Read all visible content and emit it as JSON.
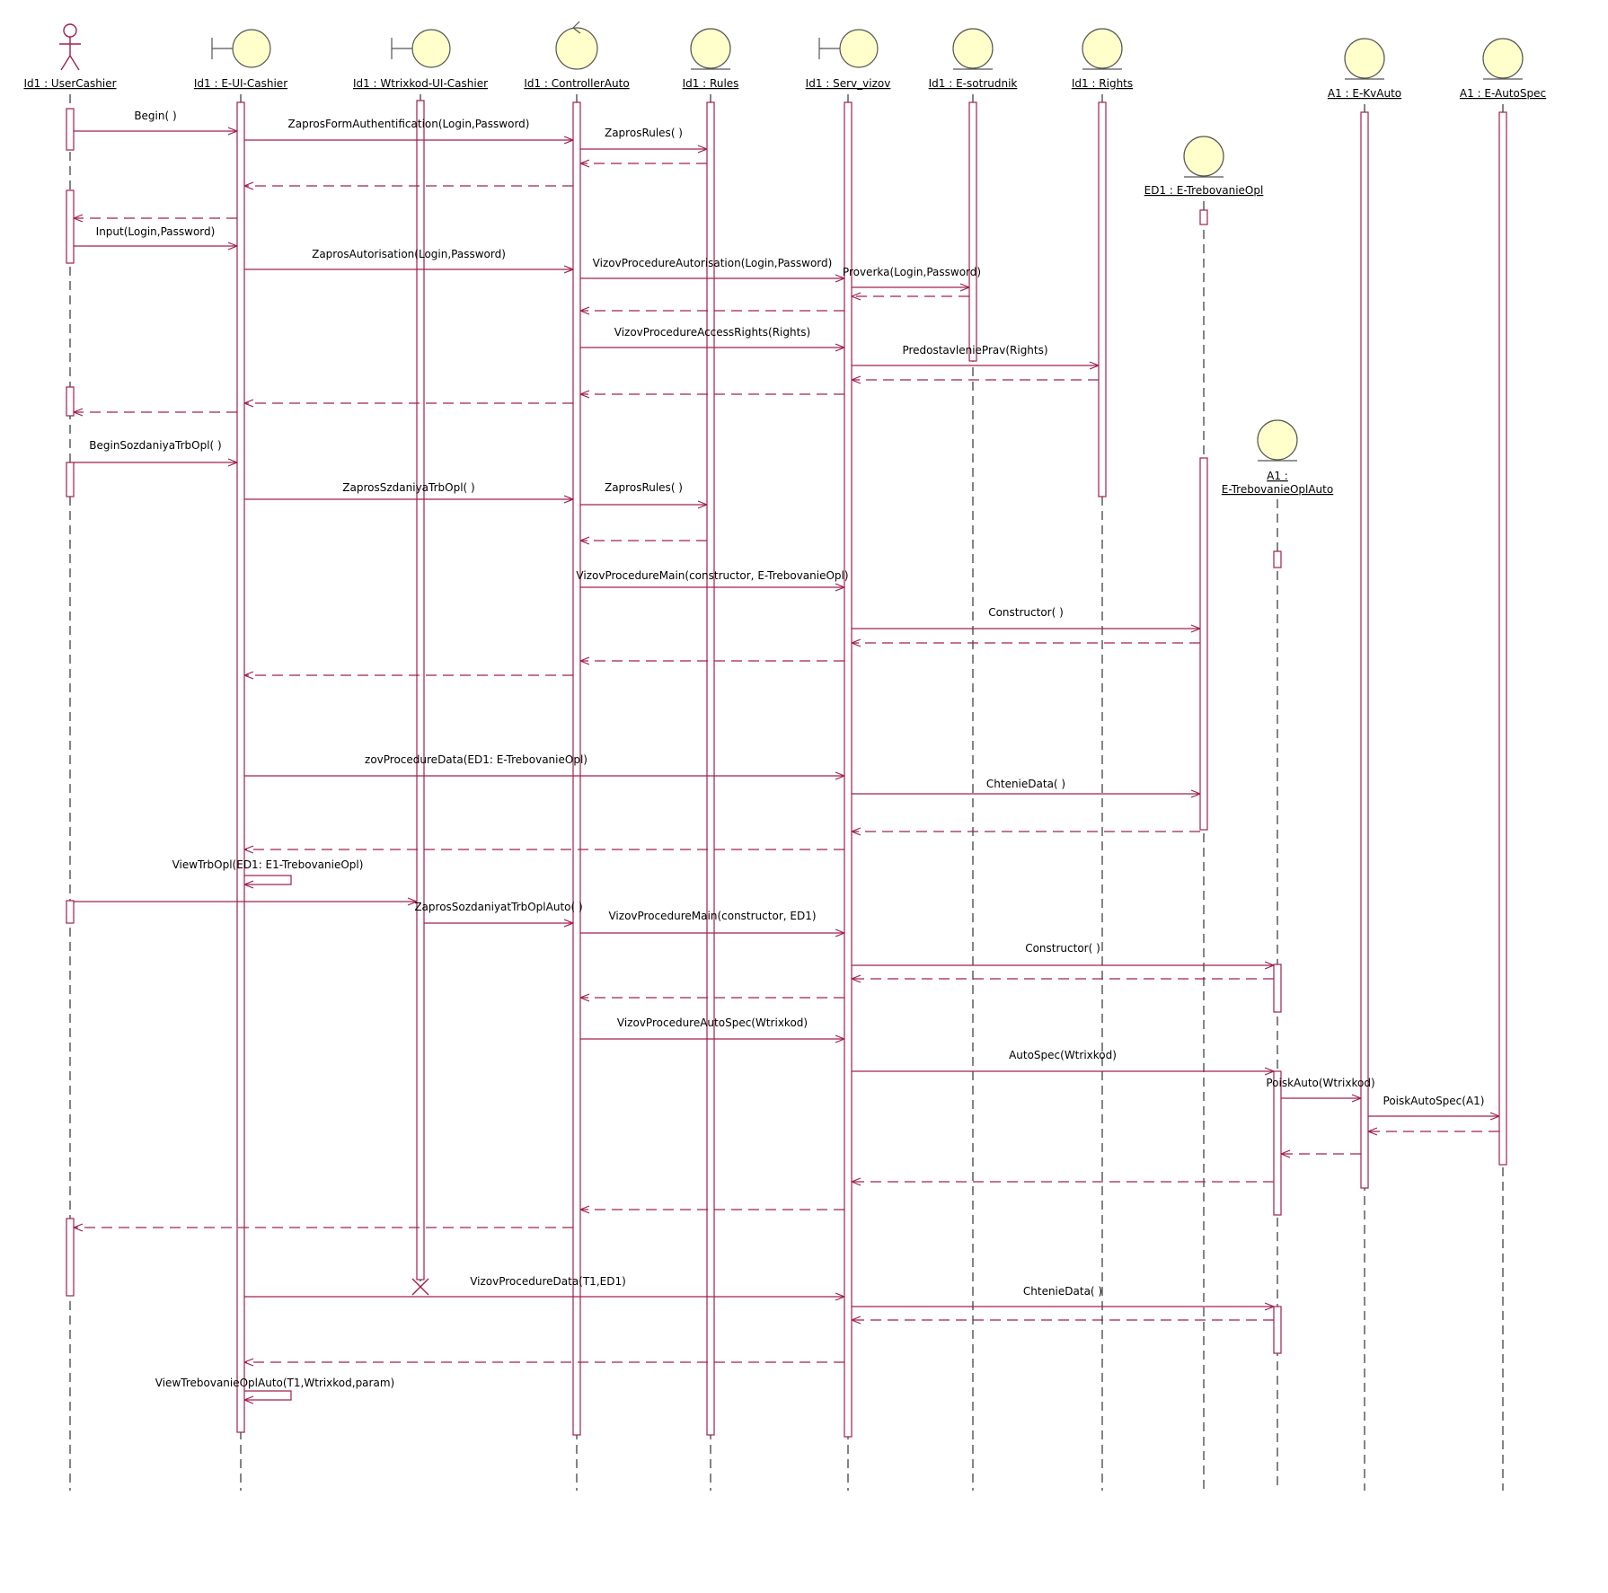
{
  "colors": {
    "line": "#a0204a",
    "icon_fill": "#ffffcc",
    "icon_stroke": "#555555",
    "text": "#000000"
  },
  "lifelines": [
    {
      "id": "user",
      "kind": "actor",
      "label": [
        "Id1 : UserCashier"
      ]
    },
    {
      "id": "ui",
      "kind": "boundary",
      "label": [
        "Id1 : E-UI-Cashier"
      ]
    },
    {
      "id": "wtr",
      "kind": "boundary",
      "label": [
        "Id1 : Wtrixkod-UI-Cashier"
      ]
    },
    {
      "id": "ctrl",
      "kind": "control",
      "label": [
        "Id1 : ControllerAuto"
      ]
    },
    {
      "id": "rules",
      "kind": "entity",
      "label": [
        "Id1 : Rules"
      ]
    },
    {
      "id": "serv",
      "kind": "boundary",
      "label": [
        "Id1 : Serv_vizov"
      ]
    },
    {
      "id": "sotr",
      "kind": "entity",
      "label": [
        "Id1 : E-sotrudnik"
      ]
    },
    {
      "id": "rights",
      "kind": "entity",
      "label": [
        "Id1 : Rights"
      ]
    },
    {
      "id": "ed1",
      "kind": "entity",
      "label": [
        "ED1 : E-TrebovanieOpl"
      ]
    },
    {
      "id": "a1t",
      "kind": "entity",
      "label": [
        "A1 :",
        "E-TrebovanieOplAuto"
      ]
    },
    {
      "id": "kv",
      "kind": "entity",
      "label": [
        "A1 : E-KvAuto"
      ]
    },
    {
      "id": "spec",
      "kind": "entity",
      "label": [
        "A1 : E-AutoSpec"
      ]
    }
  ],
  "messages": [
    {
      "from": "user",
      "to": "ui",
      "label": "Begin( )"
    },
    {
      "from": "ui",
      "to": "ctrl",
      "label": "ZaprosFormAuthentification(Login,Password)"
    },
    {
      "from": "ctrl",
      "to": "rules",
      "label": "ZaprosRules( )"
    },
    {
      "from": "rules",
      "to": "ctrl",
      "label": "",
      "return": true
    },
    {
      "from": "ctrl",
      "to": "ui",
      "label": "",
      "return": true
    },
    {
      "from": "ui",
      "to": "user",
      "label": "",
      "return": true
    },
    {
      "from": "user",
      "to": "ui",
      "label": "Input(Login,Password)"
    },
    {
      "from": "ui",
      "to": "ctrl",
      "label": "ZaprosAutorisation(Login,Password)"
    },
    {
      "from": "ctrl",
      "to": "serv",
      "label": "VizovProcedureAutorisation(Login,Password)"
    },
    {
      "from": "serv",
      "to": "sotr",
      "label": "Proverka(Login,Password)"
    },
    {
      "from": "sotr",
      "to": "serv",
      "label": "",
      "return": true
    },
    {
      "from": "serv",
      "to": "ctrl",
      "label": "",
      "return": true
    },
    {
      "from": "ctrl",
      "to": "serv",
      "label": "VizovProcedureAccessRights(Rights)"
    },
    {
      "from": "serv",
      "to": "rights",
      "label": "PredostavleniePrav(Rights)"
    },
    {
      "from": "rights",
      "to": "serv",
      "label": "",
      "return": true
    },
    {
      "from": "serv",
      "to": "ctrl",
      "label": "",
      "return": true
    },
    {
      "from": "ctrl",
      "to": "ui",
      "label": "",
      "return": true
    },
    {
      "from": "ui",
      "to": "user",
      "label": "",
      "return": true
    },
    {
      "from": "user",
      "to": "ui",
      "label": "BeginSozdaniyaTrbOpl( )"
    },
    {
      "from": "ui",
      "to": "ctrl",
      "label": "ZaprosSzdaniyaTrbOpl( )"
    },
    {
      "from": "ctrl",
      "to": "rules",
      "label": "ZaprosRules( )"
    },
    {
      "from": "rules",
      "to": "ctrl",
      "label": "",
      "return": true
    },
    {
      "from": "ctrl",
      "to": "serv",
      "label": "VizovProcedureMain(constructor, E-TrebovanieOpl)"
    },
    {
      "from": "serv",
      "to": "ed1",
      "label": "Constructor( )"
    },
    {
      "from": "ed1",
      "to": "serv",
      "label": "",
      "return": true
    },
    {
      "from": "serv",
      "to": "ctrl",
      "label": "",
      "return": true
    },
    {
      "from": "ctrl",
      "to": "ui",
      "label": "",
      "return": true
    },
    {
      "from": "ui",
      "to": "serv",
      "label": "zovProcedureData(ED1: E-TrebovanieOpl)"
    },
    {
      "from": "serv",
      "to": "ed1",
      "label": "ChtenieData( )"
    },
    {
      "from": "ed1",
      "to": "serv",
      "label": "",
      "return": true
    },
    {
      "from": "serv",
      "to": "ui",
      "label": "",
      "return": true
    },
    {
      "from": "ui",
      "to": "ui",
      "label": "ViewTrbOpl(ED1: E1-TrebovanieOpl)",
      "self": true
    },
    {
      "from": "user",
      "to": "wtr",
      "label": ""
    },
    {
      "from": "wtr",
      "to": "ctrl",
      "label": "ZaprosSozdaniyatTrbOplAuto( )"
    },
    {
      "from": "ctrl",
      "to": "serv",
      "label": "VizovProcedureMain(constructor, ED1)"
    },
    {
      "from": "serv",
      "to": "a1t",
      "label": "Constructor( )"
    },
    {
      "from": "a1t",
      "to": "serv",
      "label": "",
      "return": true
    },
    {
      "from": "serv",
      "to": "ctrl",
      "label": "",
      "return": true
    },
    {
      "from": "ctrl",
      "to": "serv",
      "label": "VizovProcedureAutoSpec(Wtrixkod)"
    },
    {
      "from": "serv",
      "to": "a1t",
      "label": "AutoSpec(Wtrixkod)"
    },
    {
      "from": "a1t",
      "to": "kv",
      "label": "PoiskAuto(Wtrixkod)"
    },
    {
      "from": "kv",
      "to": "spec",
      "label": "PoiskAutoSpec(A1)"
    },
    {
      "from": "spec",
      "to": "kv",
      "label": "",
      "return": true
    },
    {
      "from": "kv",
      "to": "a1t",
      "label": "",
      "return": true
    },
    {
      "from": "a1t",
      "to": "serv",
      "label": "",
      "return": true
    },
    {
      "from": "serv",
      "to": "ctrl",
      "label": "",
      "return": true
    },
    {
      "from": "ctrl",
      "to": "user",
      "label": "",
      "return": true
    },
    {
      "from": "ui",
      "to": "serv",
      "label": "VizovProcedureData(T1,ED1)"
    },
    {
      "from": "serv",
      "to": "a1t",
      "label": "ChtenieData( )"
    },
    {
      "from": "a1t",
      "to": "serv",
      "label": "",
      "return": true
    },
    {
      "from": "serv",
      "to": "ui",
      "label": "",
      "return": true
    },
    {
      "from": "ui",
      "to": "ui",
      "label": "ViewTrebovanieOplAuto(T1,Wtrixkod,param)",
      "self": true
    }
  ]
}
